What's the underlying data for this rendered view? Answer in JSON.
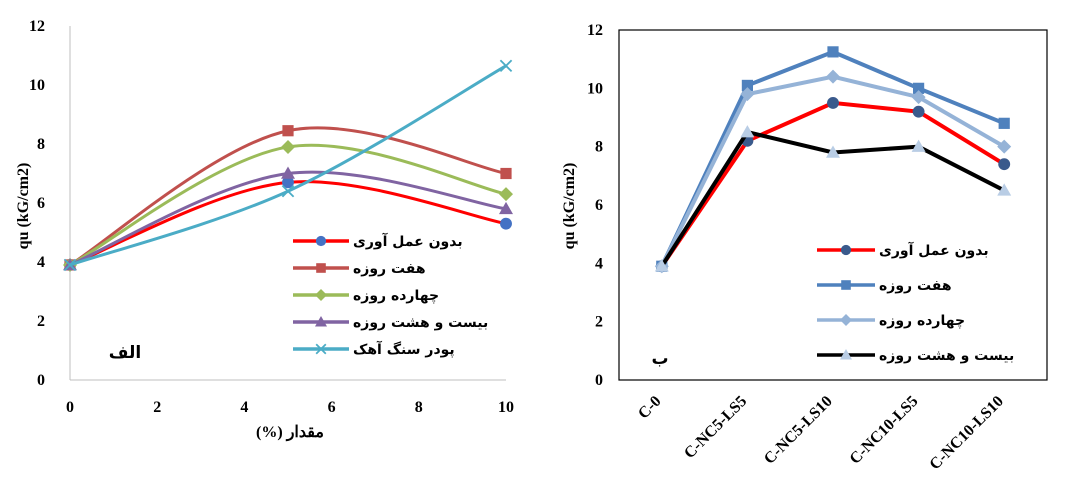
{
  "chart_data": [
    {
      "type": "line",
      "panel_label": "الف",
      "xlabel": "مقدار (%)",
      "ylabel": "qu (kG/cm2)",
      "xlim": [
        0,
        10
      ],
      "ylim": [
        0,
        12
      ],
      "xticks": [
        "0",
        "2",
        "4",
        "6",
        "8",
        "10"
      ],
      "yticks": [
        "0",
        "2",
        "4",
        "6",
        "8",
        "10",
        "12"
      ],
      "smooth": true,
      "grid": false,
      "legend_position": "lower-right",
      "series": [
        {
          "name": "بدون عمل آوری",
          "color": "#4472C4",
          "line_color": "#FF0000",
          "marker": "circle",
          "x": [
            0,
            5,
            10
          ],
          "y": [
            3.9,
            6.7,
            5.3
          ]
        },
        {
          "name": "هفت روزه",
          "color": "#C0504D",
          "line_color": "#C0504D",
          "marker": "square",
          "x": [
            0,
            5,
            10
          ],
          "y": [
            3.9,
            8.45,
            7.0
          ]
        },
        {
          "name": "چهارده روزه",
          "color": "#9BBB59",
          "line_color": "#9BBB59",
          "marker": "diamond",
          "x": [
            0,
            5,
            10
          ],
          "y": [
            3.9,
            7.9,
            6.3
          ]
        },
        {
          "name": "بیست و هشت روزه",
          "color": "#8064A2",
          "line_color": "#8064A2",
          "marker": "triangle",
          "x": [
            0,
            5,
            10
          ],
          "y": [
            3.9,
            7.0,
            5.8
          ]
        },
        {
          "name": "پودر سنگ آهک",
          "color": "#4BACC6",
          "line_color": "#4BACC6",
          "marker": "x",
          "x": [
            0,
            5,
            10
          ],
          "y": [
            3.9,
            6.4,
            10.65
          ]
        }
      ]
    },
    {
      "type": "line",
      "panel_label": "ب",
      "xlabel": "",
      "ylabel": "qu (kG/cm2)",
      "ylim": [
        0,
        12
      ],
      "yticks": [
        "0",
        "2",
        "4",
        "6",
        "8",
        "10",
        "12"
      ],
      "categories": [
        "C-0",
        "C-NC5-LS5",
        "C-NC5-LS10",
        "C-NC10-LS5",
        "C-NC10-LS10"
      ],
      "smooth": false,
      "grid": false,
      "legend_position": "lower-right",
      "series": [
        {
          "name": "بدون عمل آوری",
          "color": "#3A5A8C",
          "line_color": "#FF0000",
          "marker": "circle",
          "values": [
            3.9,
            8.2,
            9.5,
            9.2,
            7.4
          ]
        },
        {
          "name": "هفت روزه",
          "color": "#4F81BD",
          "line_color": "#4F81BD",
          "marker": "square",
          "values": [
            3.9,
            10.1,
            11.25,
            10.0,
            8.8
          ]
        },
        {
          "name": "چهارده روزه",
          "color": "#95B3D7",
          "line_color": "#95B3D7",
          "marker": "diamond",
          "values": [
            3.9,
            9.8,
            10.4,
            9.7,
            8.0
          ]
        },
        {
          "name": "بیست و هشت روزه",
          "color": "#B9CDE5",
          "line_color": "#000000",
          "marker": "triangle",
          "values": [
            3.9,
            8.5,
            7.8,
            8.0,
            6.5
          ]
        }
      ]
    }
  ]
}
